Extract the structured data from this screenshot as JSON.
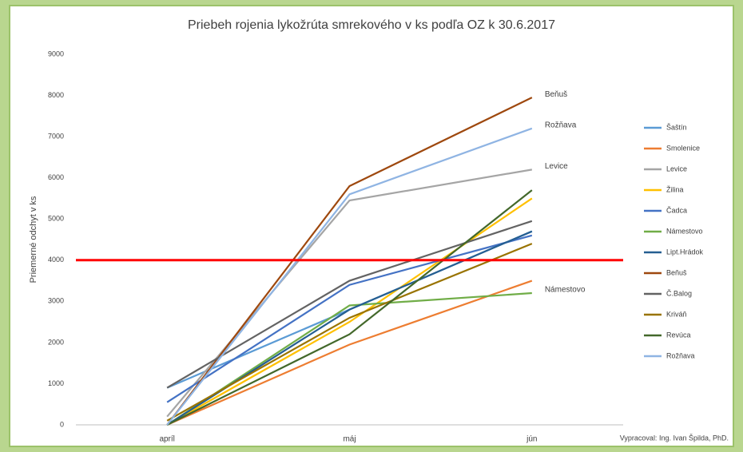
{
  "chart_data": {
    "type": "line",
    "title": "Priebeh rojenia lykožrúta smrekového v ks podľa OZ k 30.6.2017",
    "y_label": "Priemerné odchyt v ks",
    "credit": "Vypracoval: Ing. Ivan Špilda, PhD.",
    "categories": [
      "apríl",
      "máj",
      "jún"
    ],
    "ylim": [
      0,
      9000
    ],
    "yticks": [
      0,
      1000,
      2000,
      3000,
      4000,
      5000,
      6000,
      7000,
      8000,
      9000
    ],
    "grid": false,
    "legend": "right",
    "reference_line": {
      "value": 4000,
      "color": "#ff0000"
    },
    "annotations": [
      "Beňuš",
      "Rožňava",
      "Levice",
      "Námestovo"
    ],
    "series": [
      {
        "name": "Šaštín",
        "color": "#5b9bd5",
        "values": [
          900,
          2800,
          4700
        ]
      },
      {
        "name": "Smolenice",
        "color": "#ed7d31",
        "values": [
          0,
          1950,
          3500
        ]
      },
      {
        "name": "Levice",
        "color": "#a5a5a5",
        "values": [
          200,
          5450,
          6200
        ]
      },
      {
        "name": "Žilina",
        "color": "#ffc000",
        "values": [
          0,
          2500,
          5500
        ]
      },
      {
        "name": "Čadca",
        "color": "#4472c4",
        "values": [
          550,
          3400,
          4600
        ]
      },
      {
        "name": "Námestovo",
        "color": "#70ad47",
        "values": [
          0,
          2900,
          3200
        ]
      },
      {
        "name": "Lipt.Hrádok",
        "color": "#255e91",
        "values": [
          0,
          2800,
          4700
        ]
      },
      {
        "name": "Beňuš",
        "color": "#9e480e",
        "values": [
          0,
          5800,
          7950
        ]
      },
      {
        "name": "Č.Balog",
        "color": "#636363",
        "values": [
          900,
          3500,
          4950
        ]
      },
      {
        "name": "Kriváň",
        "color": "#997300",
        "values": [
          100,
          2600,
          4400
        ]
      },
      {
        "name": "Revúca",
        "color": "#43682b",
        "values": [
          0,
          2200,
          5700
        ]
      },
      {
        "name": "Rožňava",
        "color": "#8fb4e3",
        "values": [
          0,
          5600,
          7200
        ]
      }
    ]
  }
}
